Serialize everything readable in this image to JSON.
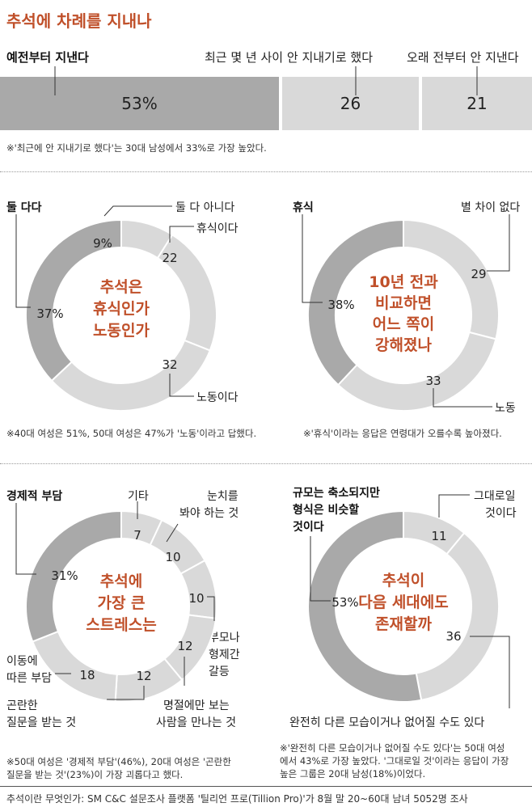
{
  "title": "추석에 차례를 지내나",
  "chart_data": [
    {
      "type": "bar",
      "title": "추석에 차례를 지내나",
      "categories": [
        "예전부터 지낸다",
        "최근 몇 년 사이 안 지내기로 했다",
        "오래 전부터 안 지낸다"
      ],
      "values": [
        53,
        26,
        21
      ],
      "value_labels": [
        "53%",
        "26",
        "21"
      ],
      "colors": [
        "#a9a9a9",
        "#d9d9d9",
        "#d9d9d9"
      ],
      "note": "※'최근에 안 지내기로 했다'는 30대 남성에서 33%로 가장 높았다."
    },
    {
      "type": "pie",
      "title": "추석은 휴식인가 노동인가",
      "center_lines": [
        "추석은",
        "휴식인가",
        "노동인가"
      ],
      "categories": [
        "둘 다 아니다",
        "휴식이다",
        "노동이다",
        "둘 다다"
      ],
      "values": [
        9,
        22,
        32,
        37
      ],
      "value_labels": [
        "9%",
        "22",
        "32",
        "37%"
      ],
      "colors": [
        "#d9d9d9",
        "#d9d9d9",
        "#d9d9d9",
        "#a9a9a9"
      ],
      "note": "※40대 여성은 51%, 50대 여성은 47%가 '노동'이라고 답했다."
    },
    {
      "type": "pie",
      "title": "10년 전과 비교하면 어느 쪽이 강해졌나",
      "center_lines": [
        "10년 전과",
        "비교하면",
        "어느 쪽이",
        "강해졌나"
      ],
      "categories": [
        "별 차이 없다",
        "노동",
        "휴식"
      ],
      "values": [
        29,
        33,
        38
      ],
      "value_labels": [
        "29",
        "33",
        "38%"
      ],
      "colors": [
        "#d9d9d9",
        "#d9d9d9",
        "#a9a9a9"
      ],
      "note": "※'휴식'이라는 응답은 연령대가 오를수록 높아졌다."
    },
    {
      "type": "pie",
      "title": "추석에 가장 큰 스트레스는",
      "center_lines": [
        "추석에",
        "가장 큰",
        "스트레스는"
      ],
      "categories": [
        "기타",
        "눈치를 봐야 하는 것",
        "부모나 형제간 갈등",
        "명절에만 보는 사람을 만나는 것",
        "곤란한 질문을 받는 것",
        "이동에 따른 부담",
        "경제적 부담"
      ],
      "values": [
        7,
        10,
        10,
        12,
        12,
        18,
        31
      ],
      "value_labels": [
        "7",
        "10",
        "10",
        "12",
        "12",
        "18",
        "31%"
      ],
      "colors": [
        "#d9d9d9",
        "#d9d9d9",
        "#d9d9d9",
        "#d9d9d9",
        "#d9d9d9",
        "#d9d9d9",
        "#a9a9a9"
      ],
      "note": [
        "※50대 여성은 '경제적 부담'(46%), 20대 여성은 '곤란한",
        "질문을 받는 것'(23%)이 가장 괴롭다고 했다."
      ]
    },
    {
      "type": "pie",
      "title": "추석이 다음 세대에도 존재할까",
      "center_lines": [
        "추석이",
        "다음 세대에도",
        "존재할까"
      ],
      "categories": [
        "그대로일 것이다",
        "완전히 다른 모습이거나 없어질 수도 있다",
        "규모는 축소되지만 형식은 비슷할 것이다"
      ],
      "values": [
        11,
        36,
        53
      ],
      "value_labels": [
        "11",
        "36",
        "53%"
      ],
      "colors": [
        "#d9d9d9",
        "#d9d9d9",
        "#a9a9a9"
      ],
      "note": [
        "※'완전히 다른 모습이거나 없어질 수도 있다'는 50대 여성",
        "에서 43%로 가장 높았다. '그대로일 것'이라는 응답이 가장",
        "높은 그룹은 20대 남성(18%)이었다."
      ]
    }
  ],
  "labels": {
    "bar": [
      "예전부터 지낸다",
      "최근 몇 년 사이 안 지내기로 했다",
      "오래 전부터 안 지낸다"
    ],
    "d1": [
      "둘 다다",
      "둘 다 아니다",
      "휴식이다",
      "노동이다"
    ],
    "d2": [
      "휴식",
      "별 차이 없다",
      "노동"
    ],
    "d3": [
      "경제적 부담",
      "기타",
      "눈치를",
      "봐야 하는 것",
      "부모나",
      "형제간",
      "갈등",
      "이동에",
      "따른 부담",
      "곤란한",
      "질문을 받는 것",
      "명절에만 보는",
      "사람을 만나는 것"
    ],
    "d4": [
      "규모는 축소되지만",
      "형식은 비슷할",
      "것이다",
      "그대로일",
      "것이다",
      "완전히 다른 모습이거나 없어질 수도 있다"
    ]
  },
  "footer": "추석이란 무엇인가: SM C&C 설문조사 플랫폼 '틸리언 프로(Tillion Pro)'가 8월 말 20~60대 남녀 5052명 조사"
}
